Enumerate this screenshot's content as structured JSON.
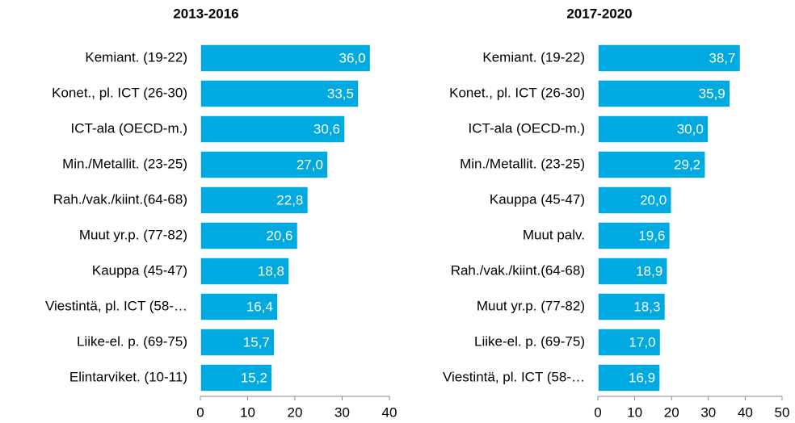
{
  "chart_data": [
    {
      "type": "barh",
      "title": "2013-2016",
      "color": "#00a9e0",
      "categories": [
        "Kemiant. (19-22)",
        "Konet., pl. ICT (26-30)",
        "ICT-ala (OECD-m.)",
        "Min./Metallit. (23-25)",
        "Rah./vak./kiint.(64-68)",
        "Muut yr.p. (77-82)",
        "Kauppa (45-47)",
        "Viestintä, pl. ICT (58-…",
        "Liike-el. p. (69-75)",
        "Elintarviket. (10-11)"
      ],
      "values": [
        36.0,
        33.5,
        30.6,
        27.0,
        22.8,
        20.6,
        18.8,
        16.4,
        15.7,
        15.2
      ],
      "value_labels": [
        "36,0",
        "33,5",
        "30,6",
        "27,0",
        "22,8",
        "20,6",
        "18,8",
        "16,4",
        "15,7",
        "15,2"
      ],
      "xlim": [
        0,
        40
      ],
      "xticks": [
        0,
        10,
        20,
        30,
        40
      ]
    },
    {
      "type": "barh",
      "title": "2017-2020",
      "color": "#00a9e0",
      "categories": [
        "Kemiant. (19-22)",
        "Konet., pl. ICT (26-30)",
        "ICT-ala (OECD-m.)",
        "Min./Metallit. (23-25)",
        "Kauppa (45-47)",
        "Muut palv.",
        "Rah./vak./kiint.(64-68)",
        "Muut yr.p. (77-82)",
        "Liike-el. p. (69-75)",
        "Viestintä, pl. ICT (58-…"
      ],
      "values": [
        38.7,
        35.9,
        30.0,
        29.2,
        20.0,
        19.6,
        18.9,
        18.3,
        17.0,
        16.9
      ],
      "value_labels": [
        "38,7",
        "35,9",
        "30,0",
        "29,2",
        "20,0",
        "19,6",
        "18,9",
        "18,3",
        "17,0",
        "16,9"
      ],
      "xlim": [
        0,
        50
      ],
      "xticks": [
        0,
        10,
        20,
        30,
        40,
        50
      ]
    }
  ]
}
